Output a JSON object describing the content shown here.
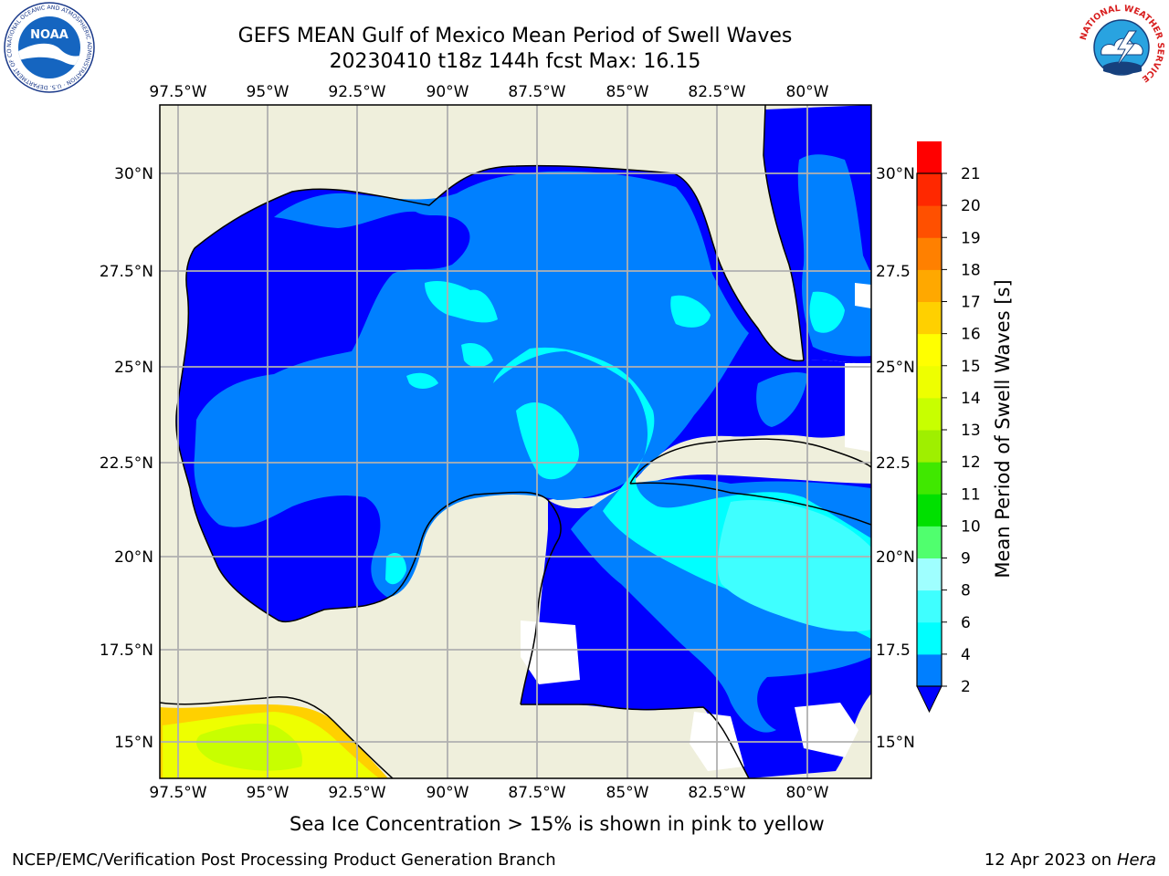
{
  "header": {
    "title": "GEFS MEAN Gulf of Mexico Mean Period of Swell Waves",
    "subtitle": "20230410 t18z 144h fcst   Max: 16.15"
  },
  "map": {
    "lon_ticks": [
      "97.5°W",
      "95°W",
      "92.5°W",
      "90°W",
      "87.5°W",
      "85°W",
      "82.5°W",
      "80°W"
    ],
    "lat_ticks": [
      "30°N",
      "27.5°N",
      "25°N",
      "22.5°N",
      "20°N",
      "17.5°N",
      "15°N"
    ],
    "lat_ticks_right": [
      "30°N",
      "27.5",
      "25°N",
      "22.5",
      "20°N",
      "17.5",
      "15°N"
    ],
    "land_color": "#efefdc",
    "ocean_colors": [
      "#0000ff",
      "#0080ff",
      "#00ffff",
      "#3fffff"
    ]
  },
  "colorbar": {
    "label": "Mean Period of Swell Waves [s]",
    "ticks": [
      "2",
      "4",
      "6",
      "8",
      "9",
      "10",
      "11",
      "12",
      "13",
      "14",
      "15",
      "16",
      "17",
      "18",
      "19",
      "20",
      "21"
    ],
    "colors": [
      "#0000ff",
      "#007fff",
      "#00ffff",
      "#3fffff",
      "#9fffff",
      "#50ff6e",
      "#00e000",
      "#40e800",
      "#9fef00",
      "#c8ff00",
      "#eeff00",
      "#ffff00",
      "#ffd000",
      "#ffa800",
      "#ff8000",
      "#ff5000",
      "#ff2800",
      "#ff0000"
    ]
  },
  "caption": "Sea Ice Concentration > 15% is shown in pink to yellow",
  "footer": {
    "left": "NCEP/EMC/Verification Post Processing Product Generation Branch",
    "right_prefix": "12 Apr 2023 on ",
    "right_host": "Hera"
  },
  "logos": {
    "noaa_text": "NOAA",
    "noaa_ring_text": "NATIONAL OCEANIC AND ATMOSPHERIC ADMINISTRATION · U.S. DEPARTMENT OF COMMERCE",
    "nws_ring_text": "NATIONAL WEATHER SERVICE"
  }
}
